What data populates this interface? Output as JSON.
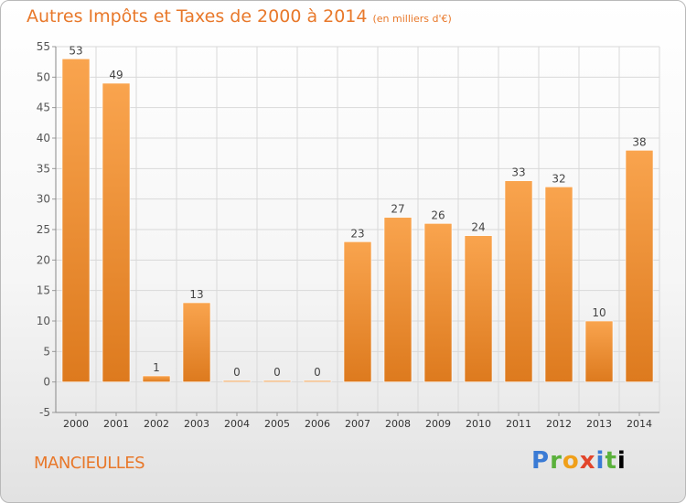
{
  "header": {
    "title": "Autres Impôts et Taxes de 2000 à 2014",
    "unit": "(en milliers d'€)"
  },
  "commune": "MANCIEULLES",
  "logo": {
    "letters": [
      "P",
      "r",
      "o",
      "x",
      "i",
      "t",
      "i"
    ]
  },
  "colors": {
    "accent": "#e8782a",
    "bar_light": "#f9a44e",
    "bar_dark": "#dd7a1e",
    "grid": "#d9d9d9"
  },
  "chart_data": {
    "type": "bar",
    "categories": [
      "2000",
      "2001",
      "2002",
      "2003",
      "2004",
      "2005",
      "2006",
      "2007",
      "2008",
      "2009",
      "2010",
      "2011",
      "2012",
      "2013",
      "2014"
    ],
    "values": [
      53,
      49,
      1,
      13,
      0,
      0,
      0,
      23,
      27,
      26,
      24,
      33,
      32,
      10,
      38
    ],
    "title": "Autres Impôts et Taxes de 2000 à 2014",
    "ylabel": "",
    "xlabel": "",
    "ylim": [
      -5,
      55
    ],
    "yticks": [
      -5,
      0,
      5,
      10,
      15,
      20,
      25,
      30,
      35,
      40,
      45,
      50,
      55
    ],
    "grid": true,
    "data_labels": true
  }
}
